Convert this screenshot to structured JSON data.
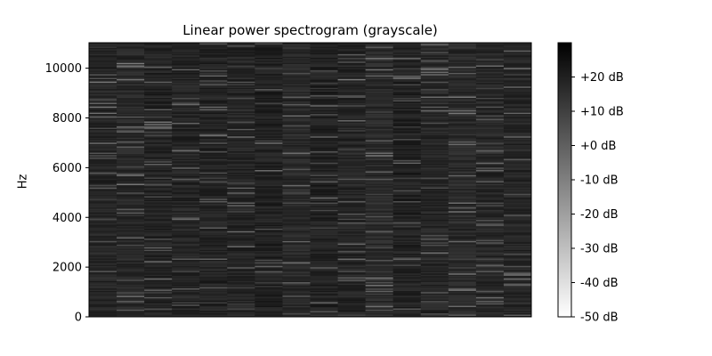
{
  "chart_data": {
    "type": "heatmap",
    "title": "Linear power spectrogram (grayscale)",
    "xlabel": "",
    "ylabel": "Hz",
    "x_ticks": [],
    "y_ticks": [
      0,
      2000,
      4000,
      6000,
      8000,
      10000
    ],
    "ylim": [
      0,
      11025
    ],
    "colormap": "gray_r",
    "colorbar": {
      "range_db": [
        -50,
        30
      ],
      "ticks": [
        -50,
        -40,
        -30,
        -20,
        -10,
        0,
        10,
        20
      ],
      "tick_labels": [
        "-50 dB",
        "-40 dB",
        "-30 dB",
        "-20 dB",
        "-10 dB",
        "+0 dB",
        "+10 dB",
        "+20 dB"
      ]
    },
    "time_frames": 16,
    "frequency_bins": 220,
    "typical_level_db": 18,
    "level_spread_db": [
      4,
      30
    ],
    "grid": false
  }
}
